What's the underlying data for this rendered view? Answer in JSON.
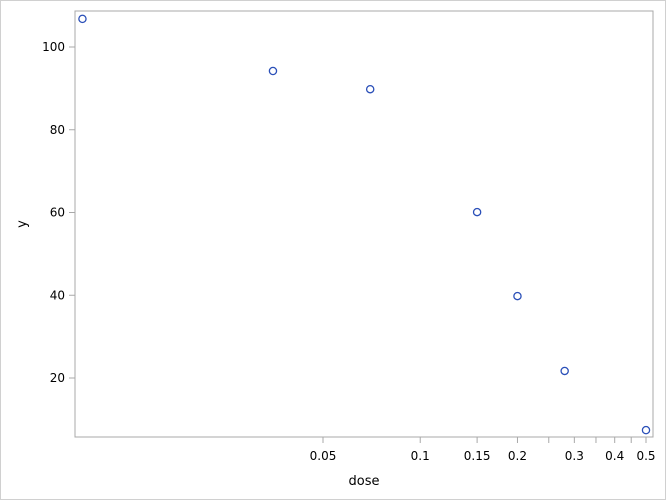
{
  "chart_data": {
    "type": "scatter",
    "title": "",
    "xlabel": "dose",
    "ylabel": "y",
    "x_scale": "log",
    "xlim": [
      0.0087,
      0.52
    ],
    "ylim": [
      5,
      108
    ],
    "x_ticks": [
      {
        "value": 0.05,
        "label": "0.05"
      },
      {
        "value": 0.1,
        "label": "0.1"
      },
      {
        "value": 0.15,
        "label": "0.15"
      },
      {
        "value": 0.2,
        "label": "0.2"
      },
      {
        "value": 0.25,
        "label": ""
      },
      {
        "value": 0.3,
        "label": "0.3"
      },
      {
        "value": 0.35,
        "label": ""
      },
      {
        "value": 0.4,
        "label": "0.4"
      },
      {
        "value": 0.45,
        "label": ""
      },
      {
        "value": 0.5,
        "label": "0.5"
      }
    ],
    "y_ticks": [
      {
        "value": 20,
        "label": "20"
      },
      {
        "value": 40,
        "label": "40"
      },
      {
        "value": 60,
        "label": "60"
      },
      {
        "value": 80,
        "label": "80"
      },
      {
        "value": 100,
        "label": "100"
      }
    ],
    "grid": false,
    "marker": "open-circle",
    "marker_color": "#2a4fb8",
    "points": [
      {
        "x": 0.009,
        "y": 106.8
      },
      {
        "x": 0.035,
        "y": 94.2
      },
      {
        "x": 0.07,
        "y": 89.8
      },
      {
        "x": 0.15,
        "y": 60.1
      },
      {
        "x": 0.2,
        "y": 39.8
      },
      {
        "x": 0.28,
        "y": 21.7
      },
      {
        "x": 0.5,
        "y": 7.4
      }
    ]
  }
}
